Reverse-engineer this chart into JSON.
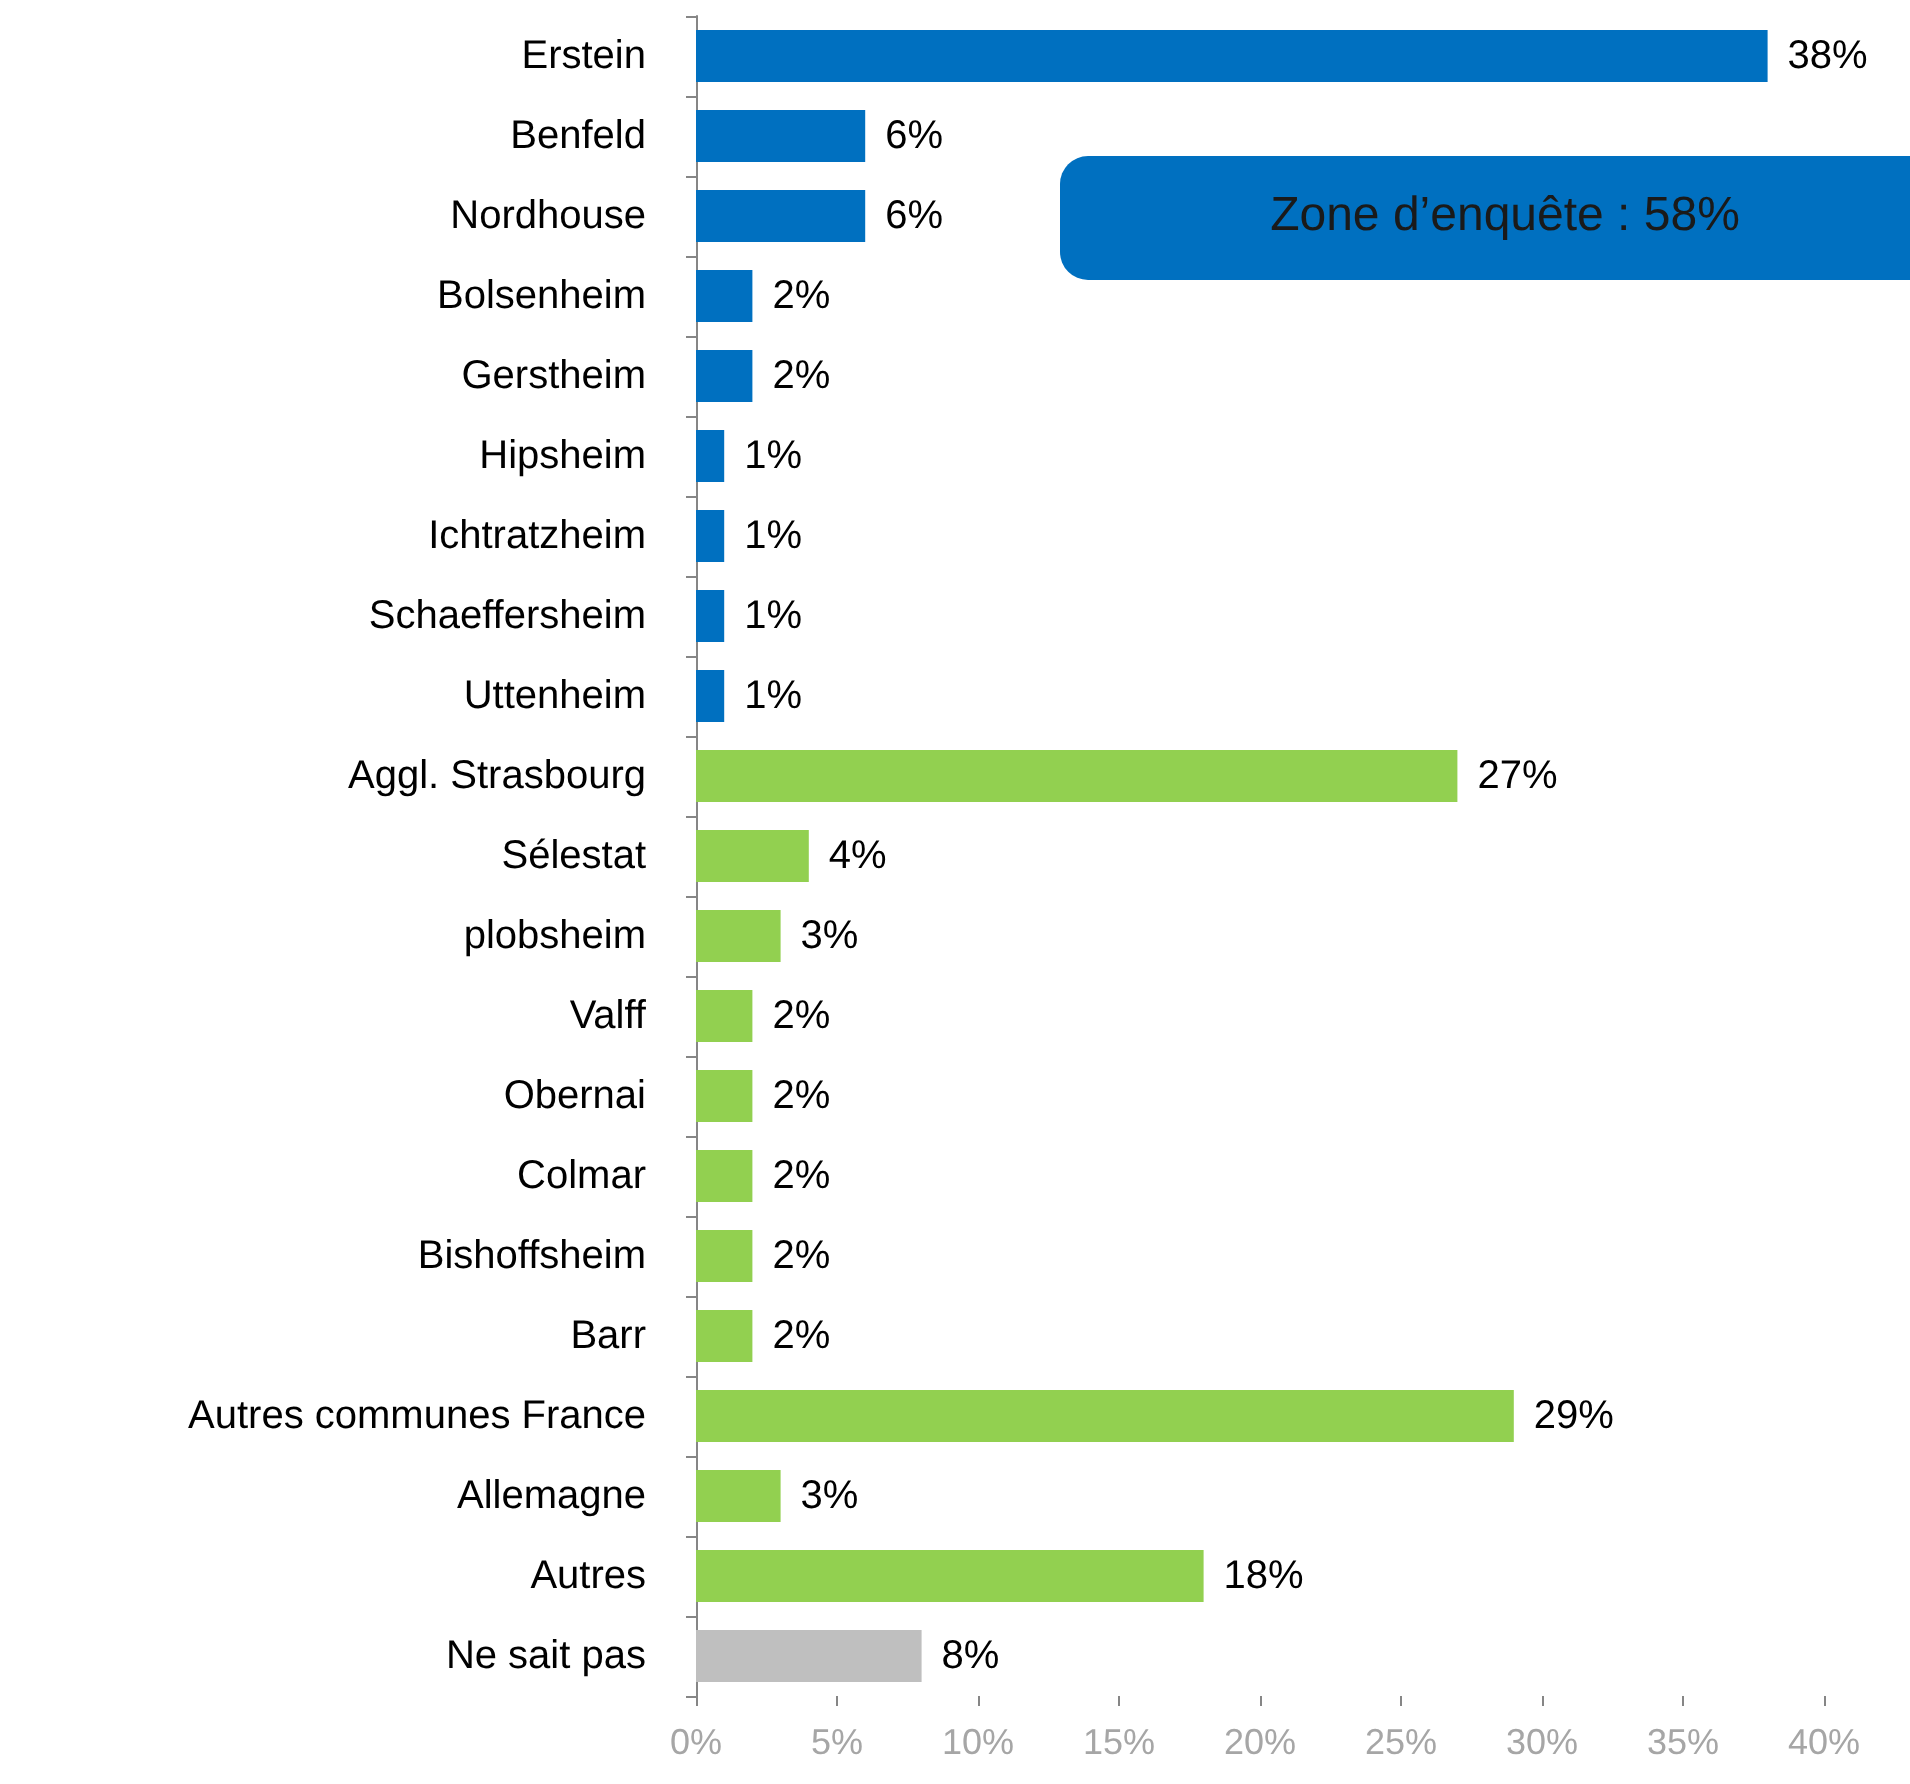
{
  "chart_data": {
    "type": "bar",
    "orientation": "horizontal",
    "categories": [
      "Erstein",
      "Benfeld",
      "Nordhouse",
      "Bolsenheim",
      "Gerstheim",
      "Hipsheim",
      "Ichtratzheim",
      "Schaeffersheim",
      "Uttenheim",
      "Aggl. Strasbourg",
      "Sélestat",
      "plobsheim",
      "Valff",
      "Obernai",
      "Colmar",
      "Bishoffsheim",
      "Barr",
      "Autres communes France",
      "Allemagne",
      "Autres",
      "Ne sait pas"
    ],
    "values": [
      38,
      6,
      6,
      2,
      2,
      1,
      1,
      1,
      1,
      27,
      4,
      3,
      2,
      2,
      2,
      2,
      2,
      29,
      3,
      18,
      8
    ],
    "value_labels": [
      "38%",
      "6%",
      "6%",
      "2%",
      "2%",
      "1%",
      "1%",
      "1%",
      "1%",
      "27%",
      "4%",
      "3%",
      "2%",
      "2%",
      "2%",
      "2%",
      "2%",
      "29%",
      "3%",
      "18%",
      "8%"
    ],
    "colors": [
      "#0070c0",
      "#0070c0",
      "#0070c0",
      "#0070c0",
      "#0070c0",
      "#0070c0",
      "#0070c0",
      "#0070c0",
      "#0070c0",
      "#92d050",
      "#92d050",
      "#92d050",
      "#92d050",
      "#92d050",
      "#92d050",
      "#92d050",
      "#92d050",
      "#92d050",
      "#92d050",
      "#92d050",
      "#bfbfbf"
    ],
    "xlim": [
      0,
      40
    ],
    "xticks": [
      {
        "value": 0,
        "label": "0%"
      },
      {
        "value": 5,
        "label": "5%"
      },
      {
        "value": 10,
        "label": "10%"
      },
      {
        "value": 15,
        "label": "15%"
      },
      {
        "value": 20,
        "label": "20%"
      },
      {
        "value": 25,
        "label": "25%"
      },
      {
        "value": 30,
        "label": "30%"
      },
      {
        "value": 35,
        "label": "35%"
      },
      {
        "value": 40,
        "label": "40%"
      }
    ],
    "annotations": [
      "Zone d’enquête : 58%"
    ],
    "grid": false
  }
}
